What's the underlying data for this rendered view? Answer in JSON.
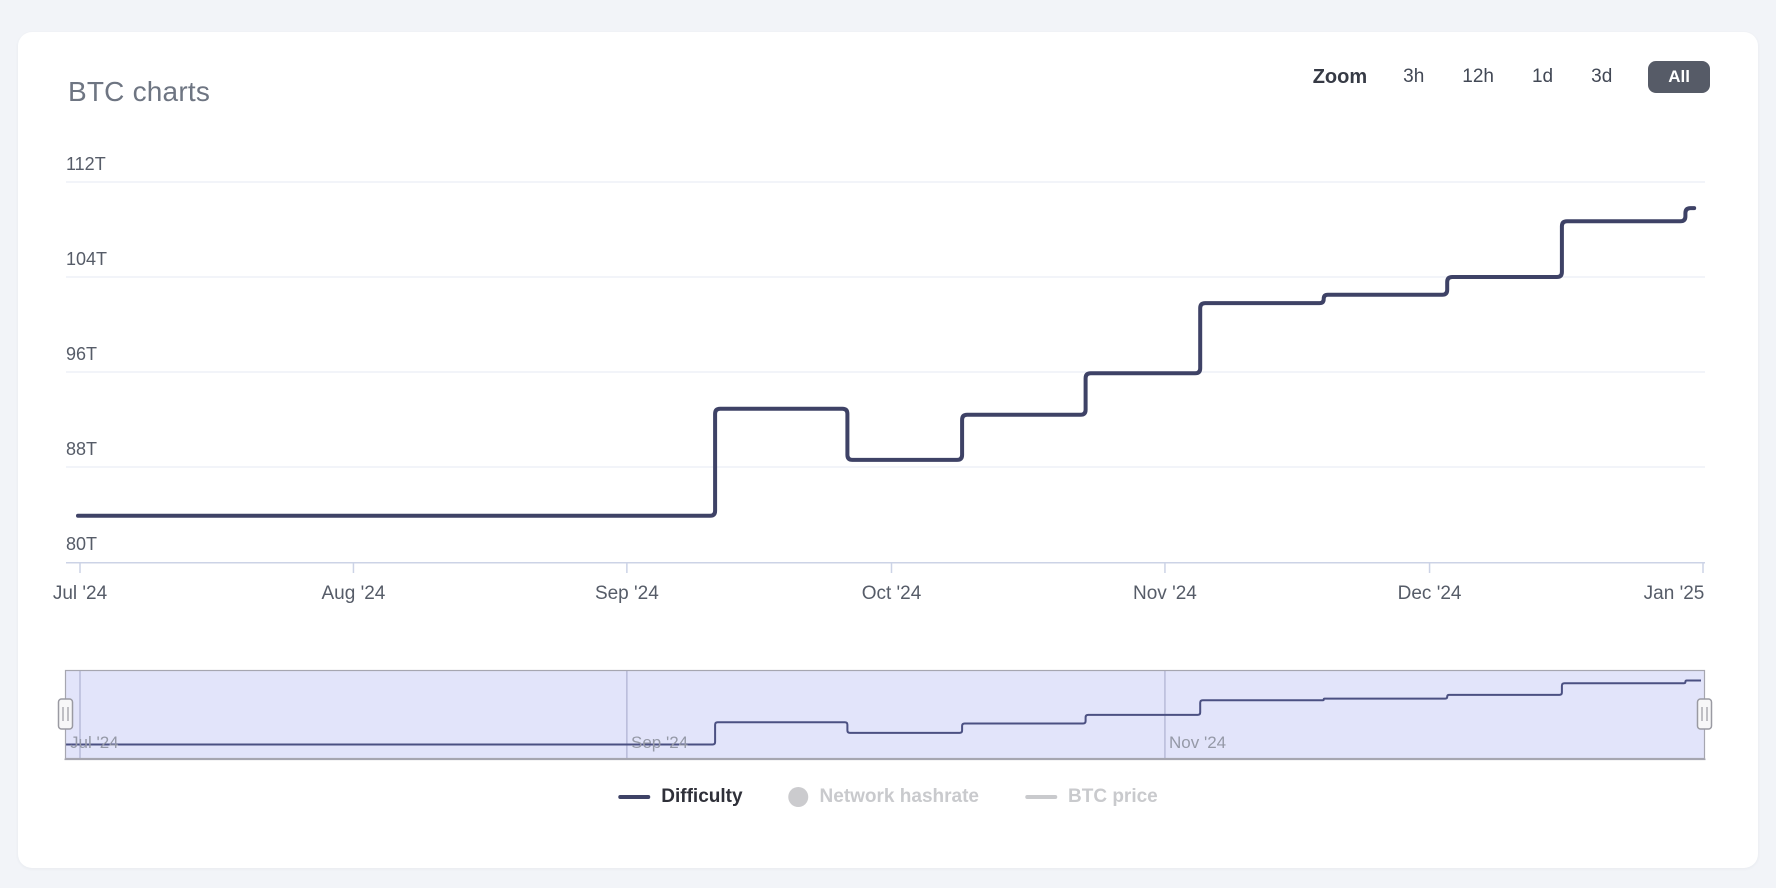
{
  "page": {
    "title": "BTC charts"
  },
  "toolbar": {
    "zoom_label": "Zoom",
    "ranges": [
      {
        "label": "3h",
        "selected": false
      },
      {
        "label": "12h",
        "selected": false
      },
      {
        "label": "1d",
        "selected": false
      },
      {
        "label": "3d",
        "selected": false
      },
      {
        "label": "All",
        "selected": true
      }
    ],
    "selected_range": "All",
    "selected_button_color": "#565b67"
  },
  "legend": {
    "items": [
      {
        "label": "Difficulty",
        "visible": true,
        "marker": "line",
        "color": "#3e4266",
        "text_color": "#2f3039"
      },
      {
        "label": "Network hashrate",
        "visible": false,
        "marker": "circle",
        "color": "#cbcbce",
        "text_color": "#c9cacd"
      },
      {
        "label": "BTC price",
        "visible": false,
        "marker": "line",
        "color": "#c9cacd",
        "text_color": "#c9cacd"
      }
    ]
  },
  "chart_data": {
    "type": "line",
    "step": true,
    "title": "BTC charts",
    "x_type": "datetime",
    "x_range": [
      "2024-07-01",
      "2025-01-01"
    ],
    "y_unit": "T",
    "ylim": [
      80,
      115.5
    ],
    "grid": "horizontal-only",
    "legend_position": "bottom-center",
    "yticks": [
      {
        "label": "80T",
        "value": 80
      },
      {
        "label": "88T",
        "value": 88
      },
      {
        "label": "96T",
        "value": 96
      },
      {
        "label": "104T",
        "value": 104
      },
      {
        "label": "112T",
        "value": 112
      }
    ],
    "xticks": [
      {
        "label": "Jul '24",
        "date": "2024-07-01"
      },
      {
        "label": "Aug '24",
        "date": "2024-08-01"
      },
      {
        "label": "Sep '24",
        "date": "2024-09-01"
      },
      {
        "label": "Oct '24",
        "date": "2024-10-01"
      },
      {
        "label": "Nov '24",
        "date": "2024-11-01"
      },
      {
        "label": "Dec '24",
        "date": "2024-12-01"
      },
      {
        "label": "Jan '25",
        "date": "2025-01-01"
      }
    ],
    "series": [
      {
        "name": "Difficulty",
        "color": "#3e4266",
        "visible": true,
        "points": [
          [
            "2024-07-01",
            83.9
          ],
          [
            "2024-09-11",
            92.9
          ],
          [
            "2024-09-26",
            88.6
          ],
          [
            "2024-10-09",
            92.4
          ],
          [
            "2024-10-23",
            95.9
          ],
          [
            "2024-11-05",
            101.8
          ],
          [
            "2024-11-19",
            102.5
          ],
          [
            "2024-12-03",
            104.0
          ],
          [
            "2024-12-16",
            108.7
          ],
          [
            "2024-12-30",
            109.8
          ]
        ],
        "end_date": "2024-12-31"
      },
      {
        "name": "Network hashrate",
        "visible": false,
        "points": []
      },
      {
        "name": "BTC price",
        "visible": false,
        "points": []
      }
    ],
    "navigator": {
      "selected_range": "all",
      "labels": [
        {
          "label": "Jul '24",
          "date": "2024-07-01"
        },
        {
          "label": "Sep '24",
          "date": "2024-09-01"
        },
        {
          "label": "Nov '24",
          "date": "2024-11-01"
        }
      ],
      "mask_color": "rgba(124,132,232,0.22)"
    },
    "colors": {
      "series": "#3e4266",
      "gridline": "#eef0f7",
      "axis_line": "#ccd3e6",
      "axis_label": "#565c68",
      "nav_label": "#9599a7",
      "nav_outline": "#a6a6b0",
      "nav_plumb": "#bcbdc9",
      "handle_fill": "#f7f7f8",
      "handle_stroke": "#9a9aa2",
      "card_bg": "#ffffff",
      "page_bg": "#f2f4f8",
      "title_color": "#6e7582"
    }
  }
}
